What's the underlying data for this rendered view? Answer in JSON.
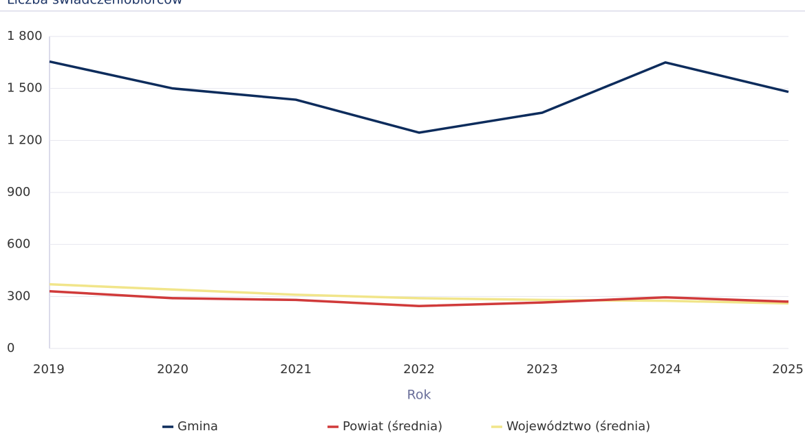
{
  "chart_data": {
    "type": "line",
    "title": "Liczba świadczeniobiorców",
    "x_label": "Rok",
    "categories": [
      "2019",
      "2020",
      "2021",
      "2022",
      "2023",
      "2024",
      "2025"
    ],
    "series": [
      {
        "name": "Gmina",
        "color": "#0d2c5c",
        "values": [
          1655,
          1500,
          1435,
          1245,
          1360,
          1650,
          1480
        ]
      },
      {
        "name": "Powiat (średnia)",
        "color": "#d03a3a",
        "values": [
          330,
          290,
          280,
          245,
          265,
          295,
          270
        ]
      },
      {
        "name": "Województwo (średnia)",
        "color": "#f1e58a",
        "values": [
          370,
          340,
          310,
          290,
          280,
          275,
          260
        ]
      }
    ],
    "ylim": [
      0,
      1800
    ],
    "yticks": [
      0,
      300,
      600,
      900,
      {
        "value": 1200,
        "label": "1 200"
      },
      {
        "value": 1500,
        "label": "1 500"
      },
      {
        "value": 1800,
        "label": "1 800"
      }
    ],
    "grid": true
  }
}
